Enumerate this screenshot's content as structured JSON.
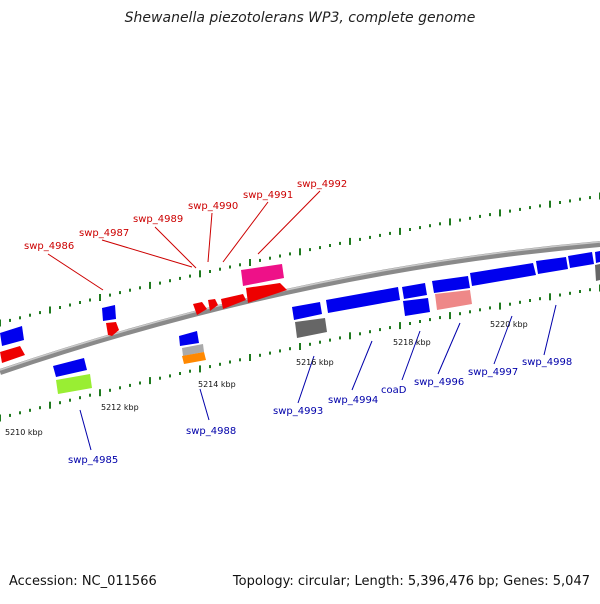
{
  "title": "Shewanella piezotolerans WP3, complete genome",
  "footer": {
    "accession": "Accession: NC_011566",
    "summary": "Topology: circular; Length: 5,396,476 bp; Genes: 5,047"
  },
  "colors": {
    "backbone": "#8a8a8a",
    "tick": "#1f7a1f",
    "label_top": "#cc0000",
    "label_bottom": "#0000aa",
    "blue_gene": "#0000ee",
    "red_gene": "#ee0000"
  },
  "scale_labels": [
    "5210 kbp",
    "5212 kbp",
    "5214 kbp",
    "5216 kbp",
    "5218 kbp",
    "5220 kbp"
  ],
  "top_gene_labels": [
    "swp_4986",
    "swp_4987",
    "swp_4989",
    "swp_4990",
    "swp_4991",
    "swp_4992"
  ],
  "bottom_gene_labels": [
    "swp_4985",
    "swp_4988",
    "swp_4993",
    "swp_4994",
    "coaD",
    "swp_4996",
    "swp_4997",
    "swp_4998"
  ]
}
